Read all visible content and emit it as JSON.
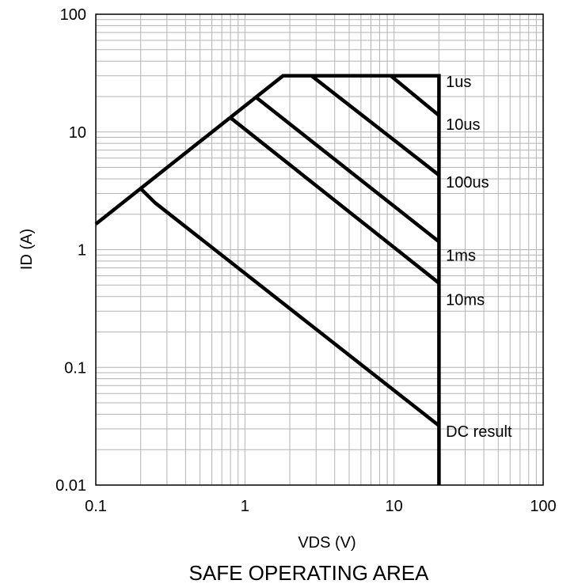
{
  "chart_data": {
    "type": "line",
    "title": "SAFE OPERATING AREA",
    "xlabel": "VDS (V)",
    "ylabel": "ID (A)",
    "xscale": "log",
    "yscale": "log",
    "xlim": [
      0.1,
      100
    ],
    "ylim": [
      0.01,
      100
    ],
    "grid": true,
    "x_ticks": [
      {
        "value": 0.1,
        "label": "0.1"
      },
      {
        "value": 1,
        "label": "1"
      },
      {
        "value": 10,
        "label": "10"
      },
      {
        "value": 100,
        "label": "100"
      }
    ],
    "y_ticks": [
      {
        "value": 0.01,
        "label": "0.01"
      },
      {
        "value": 0.1,
        "label": "0.1"
      },
      {
        "value": 1,
        "label": "1"
      },
      {
        "value": 10,
        "label": "10"
      },
      {
        "value": 100,
        "label": "100"
      }
    ],
    "boundary": [
      {
        "x": 0.1,
        "y": 1.65
      },
      {
        "x": 1.8,
        "y": 30
      },
      {
        "x": 20,
        "y": 30
      },
      {
        "x": 20,
        "y": 0.01
      }
    ],
    "series": [
      {
        "name": "1us",
        "points": [
          {
            "x": 9.5,
            "y": 30
          },
          {
            "x": 20,
            "y": 13.8
          }
        ]
      },
      {
        "name": "10us",
        "points": [
          {
            "x": 2.8,
            "y": 30
          },
          {
            "x": 20,
            "y": 4.3
          }
        ]
      },
      {
        "name": "100us",
        "points": [
          {
            "x": 1.2,
            "y": 19.5
          },
          {
            "x": 20,
            "y": 1.17
          }
        ]
      },
      {
        "name": "1ms",
        "points": [
          {
            "x": 0.8,
            "y": 13.2
          },
          {
            "x": 20,
            "y": 0.52
          }
        ]
      },
      {
        "name": "DC result",
        "points": [
          {
            "x": 0.2,
            "y": 3.3
          },
          {
            "x": 0.25,
            "y": 2.5
          },
          {
            "x": 20,
            "y": 0.032
          }
        ]
      }
    ],
    "annotations": [
      {
        "text": "1us",
        "x": 22,
        "y": 30
      },
      {
        "text": "10us",
        "x": 22,
        "y": 13
      },
      {
        "text": "100us",
        "x": 22,
        "y": 4.2
      },
      {
        "text": "1ms",
        "x": 22,
        "y": 1.0
      },
      {
        "text": "10ms",
        "x": 22,
        "y": 0.42
      },
      {
        "text": "DC result",
        "x": 22,
        "y": 0.032
      }
    ]
  }
}
